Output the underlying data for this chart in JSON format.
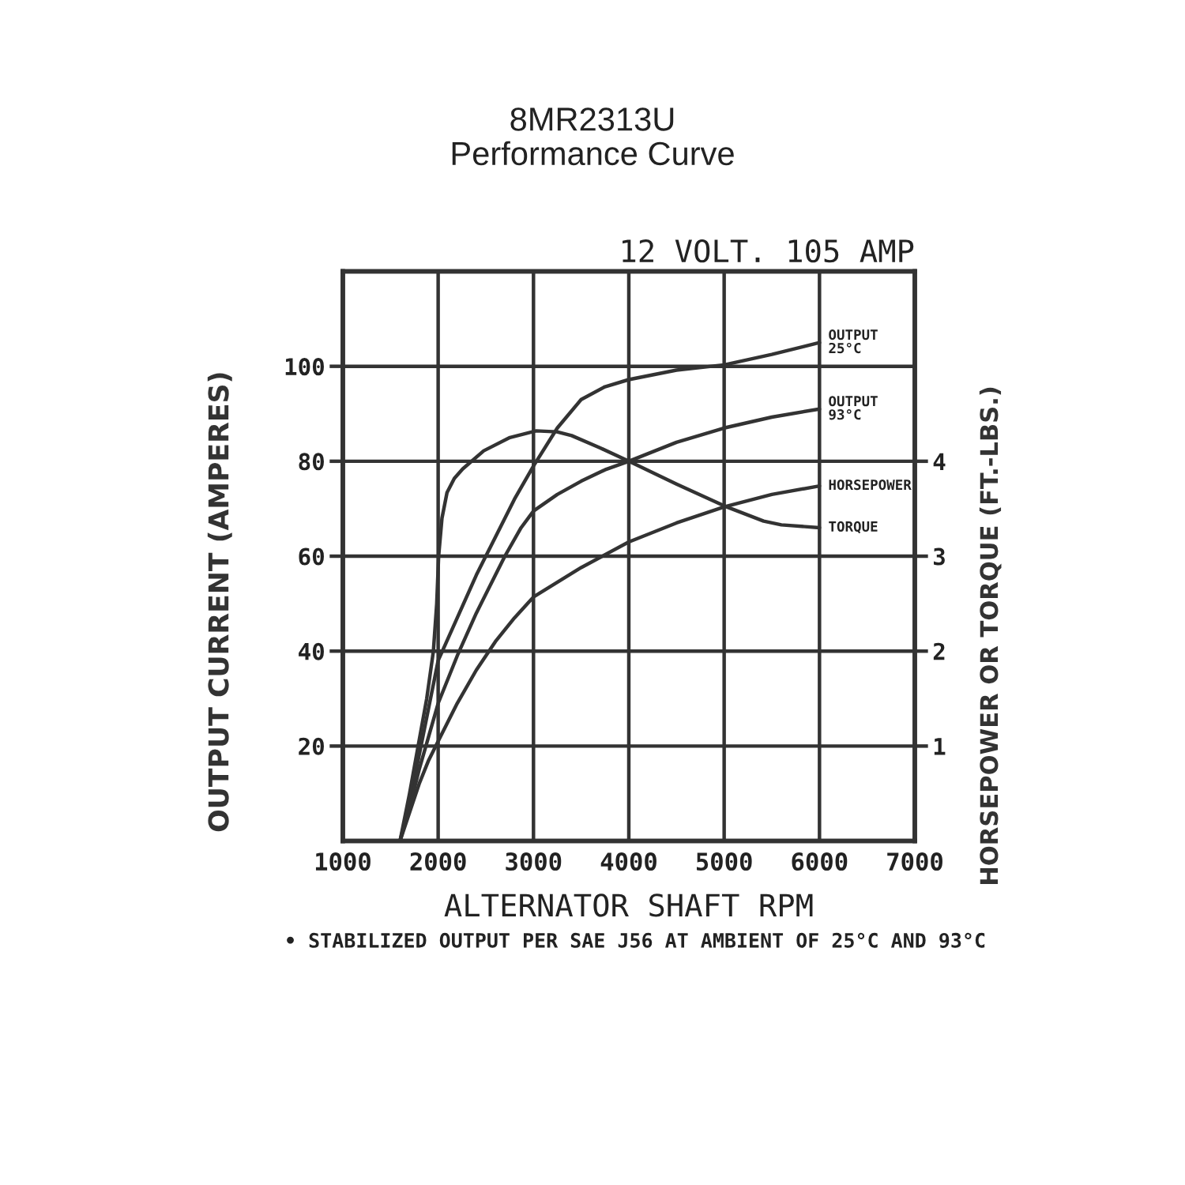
{
  "chart_data": {
    "type": "line",
    "title": "8MR2313U",
    "subtitle": "Performance Curve",
    "xlabel": "ALTERNATOR SHAFT RPM",
    "ylabel": "OUTPUT CURRENT (AMPERES)",
    "y2label": "HORSEPOWER OR TORQUE (FT.-LBS.)",
    "annotations": [
      "12 VOLT. 105 AMP",
      "• STABILIZED OUTPUT PER SAE J56 AT AMBIENT OF 25°C AND 93°C"
    ],
    "xlim": [
      1000,
      7000
    ],
    "xticks": [
      1000,
      2000,
      3000,
      4000,
      5000,
      6000,
      7000
    ],
    "ylim": [
      0,
      120
    ],
    "yticks": [
      20,
      40,
      60,
      80,
      100
    ],
    "y2lim": [
      0,
      6
    ],
    "y2ticks": [
      1,
      2,
      3,
      4
    ],
    "grid": true,
    "series": [
      {
        "name": "OUTPUT\n25°C",
        "color": "#333333",
        "x": [
          1600,
          1700,
          1800,
          1900,
          2000,
          2200,
          2400,
          2500,
          2600,
          2800,
          3000,
          3250,
          3500,
          3750,
          4000,
          4500,
          5000,
          5500,
          6000
        ],
        "values": [
          0,
          8,
          18,
          28,
          38,
          47,
          56,
          60,
          64,
          72,
          79,
          87,
          93,
          95.7,
          97.2,
          99.2,
          100.3,
          102.5,
          105
        ]
      },
      {
        "name": "OUTPUT\n93°C",
        "color": "#333333",
        "x": [
          1600,
          1700,
          1800,
          1900,
          2000,
          2200,
          2400,
          2600,
          2700,
          2870,
          3000,
          3250,
          3500,
          3750,
          4000,
          4500,
          5000,
          5500,
          6000
        ],
        "values": [
          0,
          7,
          15,
          22,
          29,
          39,
          48,
          56,
          60,
          66,
          69.5,
          73,
          75.8,
          78.2,
          80,
          84,
          87,
          89.3,
          91
        ]
      },
      {
        "name": "HORSEPOWER",
        "color": "#333333",
        "axis": "y2",
        "x": [
          1600,
          1700,
          1800,
          1900,
          2000,
          2200,
          2400,
          2600,
          2800,
          3000,
          3500,
          4000,
          4500,
          5000,
          5500,
          6000
        ],
        "values": [
          0,
          0.3,
          0.6,
          0.85,
          1.05,
          1.45,
          1.8,
          2.1,
          2.35,
          2.57,
          2.88,
          3.15,
          3.35,
          3.52,
          3.65,
          3.74
        ]
      },
      {
        "name": "TORQUE",
        "color": "#333333",
        "axis": "y2",
        "x": [
          1600,
          1700,
          1790,
          1880,
          1950,
          1985,
          2005,
          2040,
          2093,
          2170,
          2258,
          2478,
          2753,
          3028,
          3247,
          3400,
          3700,
          4000,
          4500,
          5000,
          5414,
          5600,
          6000
        ],
        "values": [
          0,
          0.5,
          1.0,
          1.5,
          2.0,
          2.5,
          3.0,
          3.4,
          3.67,
          3.82,
          3.92,
          4.11,
          4.25,
          4.32,
          4.31,
          4.27,
          4.14,
          4.0,
          3.76,
          3.53,
          3.37,
          3.33,
          3.3
        ]
      }
    ]
  }
}
